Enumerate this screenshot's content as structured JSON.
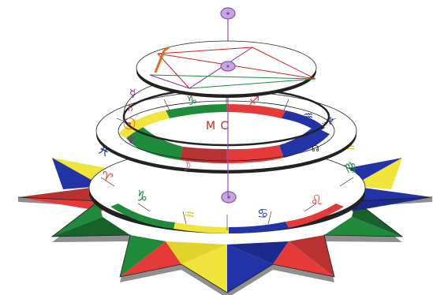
{
  "colors": {
    "fire": "#e53a3a",
    "earth": "#1e8a3a",
    "air": "#f1e43a",
    "water": "#2233a8",
    "fire_dark": "#b83232",
    "earth_dark": "#17612b",
    "air_dark": "#b8ad1f",
    "water_dark": "#16237a",
    "pole": "#c7a6e0",
    "pole_stroke": "#8a4fb3",
    "aspect_red": "#cc2222",
    "aspect_green": "#1e8a3a",
    "aspect_orange": "#e36b1a",
    "aspect_purple": "#8a2a9a"
  },
  "lower_ring_signs": [
    {
      "glyph": "♑",
      "name": "capricorn",
      "color": "earth"
    },
    {
      "glyph": "♒",
      "name": "aquarius",
      "color": "air"
    },
    {
      "glyph": "♋",
      "name": "cancer",
      "color": "water"
    },
    {
      "glyph": "♌",
      "name": "leo",
      "color": "fire"
    },
    {
      "glyph": "♍",
      "name": "virgo",
      "color": "earth"
    },
    {
      "glyph": "♎",
      "name": "libra",
      "color": "air"
    },
    {
      "glyph": "♓",
      "name": "pisces",
      "color": "water"
    },
    {
      "glyph": "♈",
      "name": "aries",
      "color": "fire"
    }
  ],
  "middle_ring_signs": [
    {
      "glyph": "♑",
      "name": "capricorn",
      "color": "earth"
    },
    {
      "glyph": "♐",
      "name": "sagittarius",
      "color": "fire"
    },
    {
      "glyph": "♒",
      "name": "aquarius",
      "color": "water"
    },
    {
      "glyph": "♆",
      "name": "neptune",
      "color": "water"
    },
    {
      "glyph": "☊",
      "name": "north-node",
      "color": "dark"
    }
  ],
  "upper_ring_planets": [
    {
      "glyph": "☿",
      "name": "mercury"
    },
    {
      "glyph": "♄",
      "name": "saturn"
    },
    {
      "glyph": "☉",
      "name": "sun"
    },
    {
      "glyph": "♆",
      "name": "neptune"
    }
  ],
  "labels": {
    "mc": "M C",
    "moon": "☽"
  }
}
